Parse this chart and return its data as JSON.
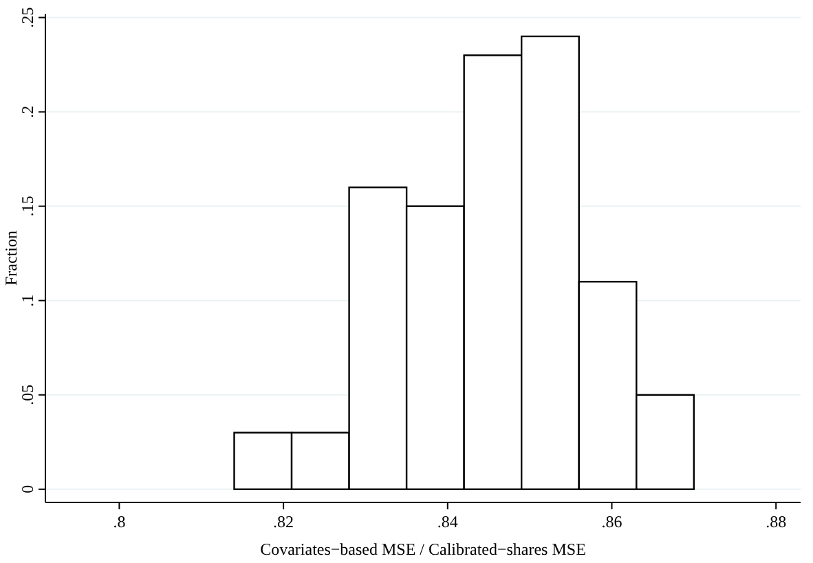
{
  "chart_data": {
    "type": "histogram",
    "xlabel": "Covariates−based MSE / Calibrated−shares MSE",
    "ylabel": "Fraction",
    "bins": [
      0.814,
      0.821,
      0.828,
      0.835,
      0.842,
      0.849,
      0.856,
      0.863,
      0.87
    ],
    "values": [
      0.03,
      0.03,
      0.16,
      0.15,
      0.23,
      0.24,
      0.11,
      0.05
    ],
    "color": "#ffffff",
    "xlim": [
      0.791,
      0.883
    ],
    "xticks": [
      {
        "value": 0.8,
        "label": ".8"
      },
      {
        "value": 0.82,
        "label": ".82"
      },
      {
        "value": 0.84,
        "label": ".84"
      },
      {
        "value": 0.86,
        "label": ".86"
      },
      {
        "value": 0.88,
        "label": ".88"
      }
    ],
    "ylim": [
      -0.007,
      0.252
    ],
    "yticks": [
      {
        "value": 0,
        "label": "0"
      },
      {
        "value": 0.05,
        "label": ".05"
      },
      {
        "value": 0.1,
        "label": ".1"
      },
      {
        "value": 0.15,
        "label": ".15"
      },
      {
        "value": 0.2,
        "label": ".2"
      },
      {
        "value": 0.25,
        "label": ".25"
      }
    ],
    "grid": "y"
  }
}
